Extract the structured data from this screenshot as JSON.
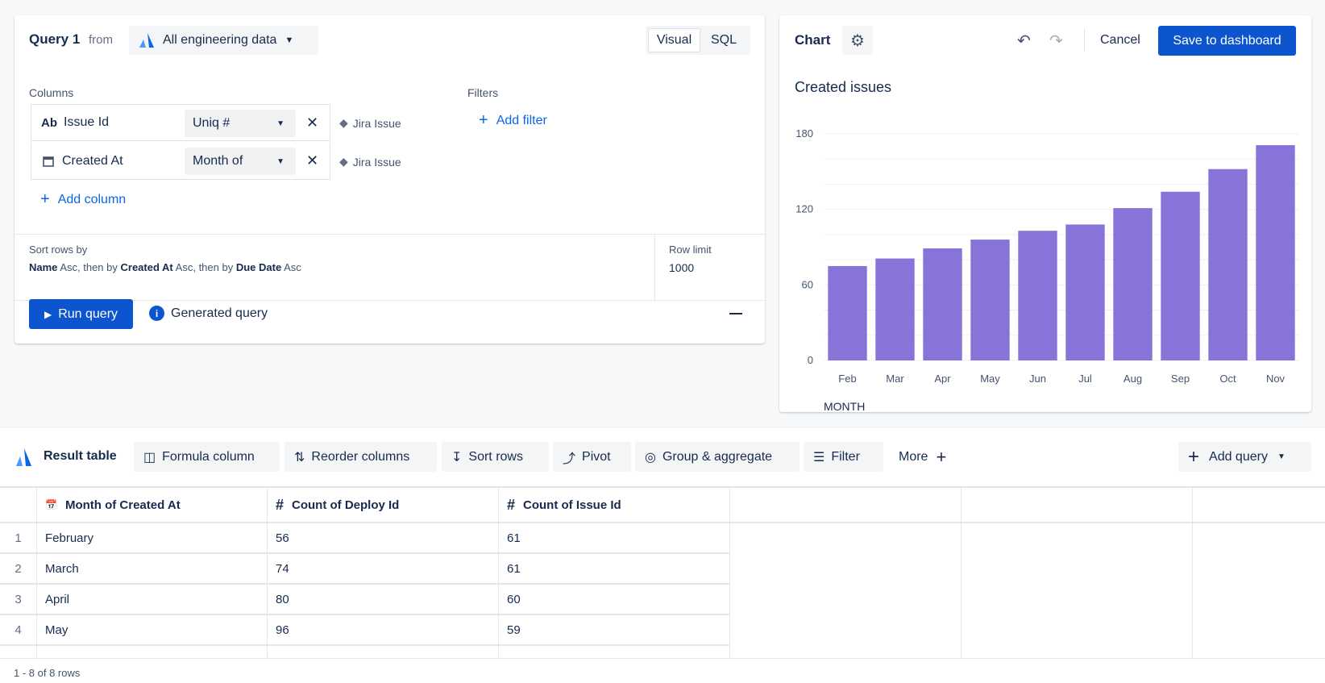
{
  "query": {
    "title": "Query 1",
    "from": "from",
    "source": "All engineering data",
    "modes": [
      "Visual",
      "SQL"
    ],
    "active_mode": "Visual",
    "columns_label": "Columns",
    "filters_label": "Filters",
    "columns": [
      {
        "type_icon": "Ab",
        "name": "Issue Id",
        "agg": "Uniq #",
        "entity": "Jira Issue"
      },
      {
        "type_icon": "calendar-icon",
        "name": "Created At",
        "agg": "Month of",
        "entity": "Jira Issue"
      }
    ],
    "add_column": "Add column",
    "add_filter": "Add filter",
    "sort_label": "Sort rows by",
    "sort": [
      {
        "field": "Name",
        "dir": "Asc"
      },
      {
        "field": "Created At",
        "dir": "Asc"
      },
      {
        "field": "Due Date",
        "dir": "Asc"
      }
    ],
    "then_by": ", then by",
    "row_limit_label": "Row limit",
    "row_limit": "1000",
    "run": "Run query",
    "generated": "Generated query"
  },
  "chart_panel": {
    "title": "Chart",
    "cancel": "Cancel",
    "save": "Save to dashboard"
  },
  "chart_data": {
    "type": "bar",
    "title": "Created issues",
    "xlabel": "MONTH",
    "ylabel": "",
    "categories": [
      "Feb",
      "Mar",
      "Apr",
      "May",
      "Jun",
      "Jul",
      "Aug",
      "Sep",
      "Oct",
      "Nov"
    ],
    "values": [
      75,
      81,
      89,
      96,
      103,
      108,
      121,
      134,
      152,
      171
    ],
    "ylim": [
      0,
      180
    ],
    "yticks": [
      0,
      60,
      120,
      180
    ],
    "grid": true,
    "color": "#8874d8"
  },
  "result": {
    "title": "Result table",
    "tools": [
      "Formula column",
      "Reorder columns",
      "Sort rows",
      "Pivot",
      "Group & aggregate",
      "Filter"
    ],
    "more": "More",
    "add_query": "Add query",
    "headers": [
      "Month of Created At",
      "Count of Deploy Id",
      "Count of Issue Id"
    ],
    "rows": [
      [
        "1",
        "February",
        "56",
        "61"
      ],
      [
        "2",
        "March",
        "74",
        "61"
      ],
      [
        "3",
        "April",
        "80",
        "60"
      ],
      [
        "4",
        "May",
        "96",
        "59"
      ]
    ],
    "footer": "1 - 8 of 8 rows"
  }
}
